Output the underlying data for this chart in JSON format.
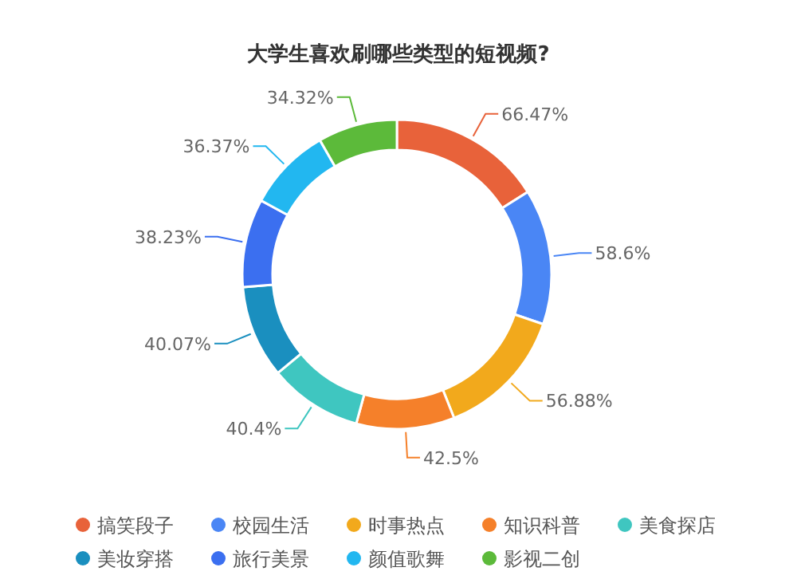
{
  "chart_data": {
    "type": "donut",
    "title": "大学生喜欢刷哪些类型的短视频?",
    "categories": [
      "搞笑段子",
      "校园生活",
      "时事热点",
      "知识科普",
      "美食探店",
      "美妆穿搭",
      "旅行美景",
      "颜值歌舞",
      "影视二创"
    ],
    "values": [
      66.47,
      58.6,
      56.88,
      42.5,
      40.4,
      40.07,
      38.23,
      36.37,
      34.32
    ],
    "value_labels": [
      "66.47%",
      "58.6%",
      "56.88%",
      "42.5%",
      "40.4%",
      "40.07%",
      "38.23%",
      "36.37%",
      "34.32%"
    ],
    "colors": [
      "#e8623a",
      "#4a86f5",
      "#f2a91c",
      "#f5802a",
      "#3fc6c0",
      "#1a8fbf",
      "#3b6ff0",
      "#22b7f0",
      "#5cba3a"
    ],
    "legend": "bottom"
  }
}
